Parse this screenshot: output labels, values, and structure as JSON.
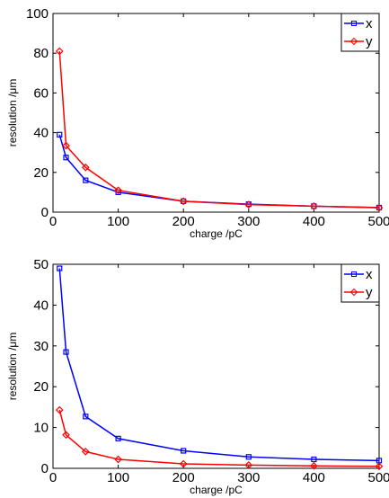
{
  "chart_data": [
    {
      "type": "line",
      "xlabel": "charge /pC",
      "ylabel": "resolution /μm",
      "xlim": [
        0,
        500
      ],
      "ylim": [
        0,
        100
      ],
      "xticks": [
        0,
        100,
        200,
        300,
        400,
        500
      ],
      "yticks": [
        0,
        20,
        40,
        60,
        80,
        100
      ],
      "grid": false,
      "legend_position": "top-right",
      "series": [
        {
          "name": "x",
          "color": "#0000ff",
          "marker": "square",
          "x": [
            10,
            20,
            50,
            100,
            200,
            300,
            400,
            500
          ],
          "y": [
            39,
            27.5,
            16,
            10,
            5.5,
            4,
            3,
            2.3
          ]
        },
        {
          "name": "y",
          "color": "#ff0000",
          "marker": "diamond",
          "x": [
            10,
            20,
            50,
            100,
            200,
            300,
            400,
            500
          ],
          "y": [
            81,
            33.5,
            22.5,
            11,
            5.5,
            3.8,
            3,
            2.2
          ]
        }
      ]
    },
    {
      "type": "line",
      "xlabel": "charge /pC",
      "ylabel": "resolution /μm",
      "xlim": [
        0,
        500
      ],
      "ylim": [
        0,
        50
      ],
      "xticks": [
        0,
        100,
        200,
        300,
        400,
        500
      ],
      "yticks": [
        0,
        10,
        20,
        30,
        40,
        50
      ],
      "grid": false,
      "legend_position": "top-right",
      "series": [
        {
          "name": "x",
          "color": "#0000ff",
          "marker": "square",
          "x": [
            10,
            20,
            50,
            100,
            200,
            300,
            400,
            500
          ],
          "y": [
            49,
            28.5,
            12.7,
            7.3,
            4.3,
            2.8,
            2.2,
            1.9
          ]
        },
        {
          "name": "y",
          "color": "#ff0000",
          "marker": "diamond",
          "x": [
            10,
            20,
            50,
            100,
            200,
            300,
            400,
            500
          ],
          "y": [
            14.3,
            8.2,
            4.1,
            2.2,
            1.1,
            0.8,
            0.6,
            0.5
          ]
        }
      ]
    }
  ]
}
